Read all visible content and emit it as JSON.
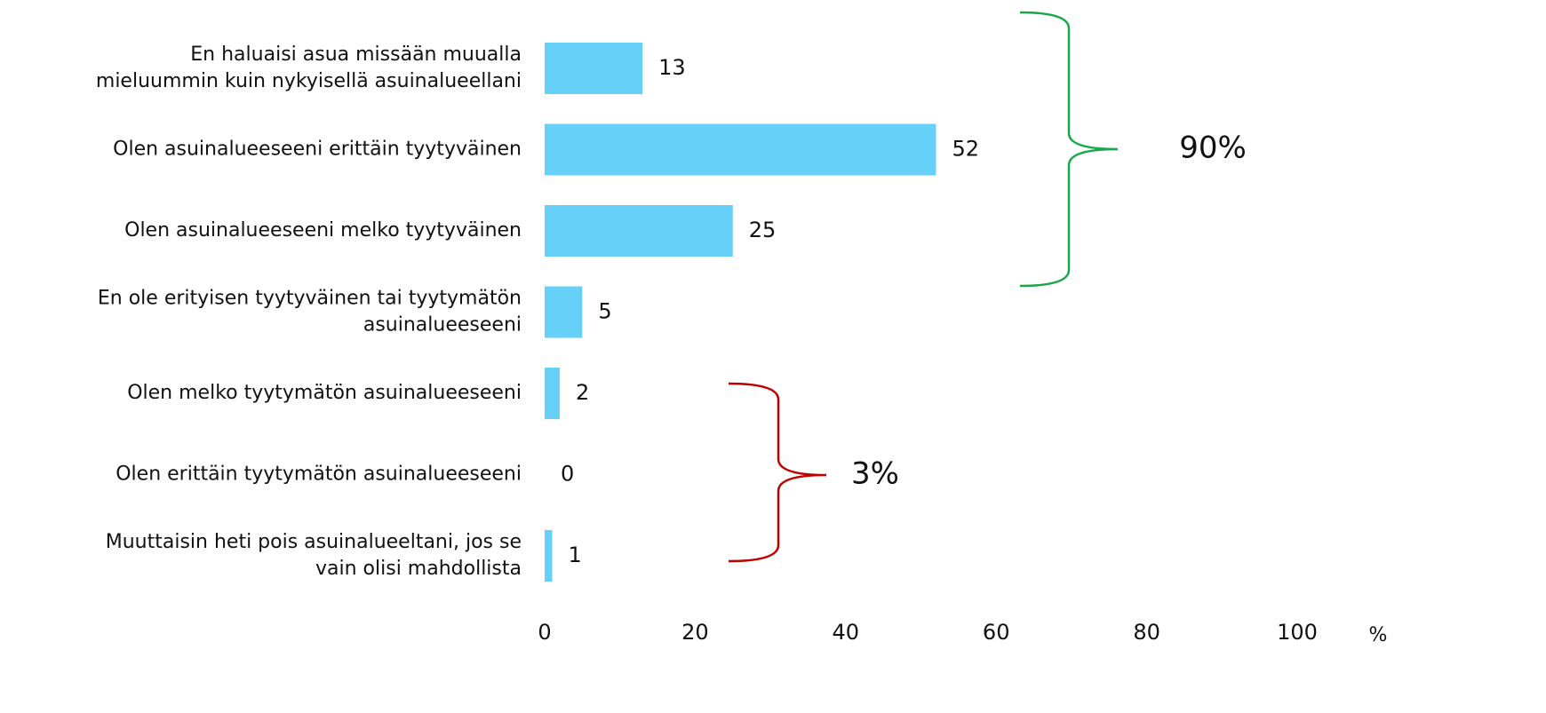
{
  "chart_data": {
    "type": "bar",
    "orientation": "horizontal",
    "categories": [
      [
        "En haluaisi asua missään muualla",
        "mieluummin kuin nykyisellä asuinalueellani"
      ],
      [
        "Olen asuinalueeseeni erittäin tyytyväinen"
      ],
      [
        "Olen asuinalueeseeni melko tyytyväinen"
      ],
      [
        "En ole erityisen tyytyväinen tai tyytymätön",
        "asuinalueeseeni"
      ],
      [
        "Olen melko tyytymätön asuinalueeseeni"
      ],
      [
        "Olen erittäin tyytymätön asuinalueeseeni"
      ],
      [
        "Muuttaisin heti pois asuinalueeltani, jos se",
        "vain olisi mahdollista"
      ]
    ],
    "values": [
      13,
      52,
      25,
      5,
      2,
      0,
      1
    ],
    "color": "#66d0f8",
    "xlim": [
      0,
      100
    ],
    "xticks": [
      0,
      20,
      40,
      60,
      80,
      100
    ],
    "x_label": "%",
    "grid": false,
    "annotations": [
      {
        "text": "90%",
        "color": "#1aa64a"
      },
      {
        "text": "3%",
        "color": "#c00000"
      }
    ]
  }
}
